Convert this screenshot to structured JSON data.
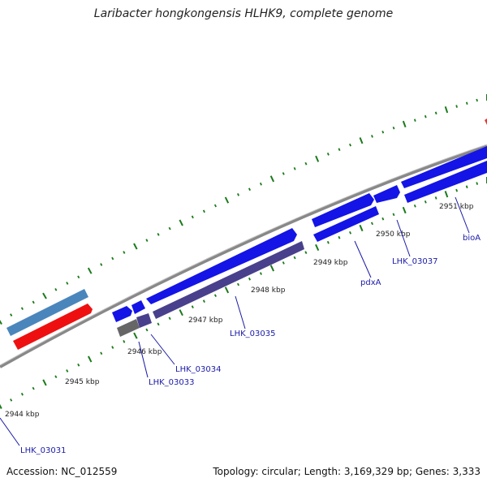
{
  "title": "Laribacter hongkongensis HLHK9, complete genome",
  "footer": {
    "accession": "Accession: NC_012559",
    "summary": "Topology: circular; Length: 3,169,329 bp; Genes: 3,333"
  },
  "colors": {
    "backbone": "#888888",
    "tick": "#1a7a1a",
    "gene_label": "#1a1aa8",
    "feature_blue": "#1414e6",
    "feature_purple": "#48408c",
    "feature_steel": "#4a86bc",
    "feature_red": "#ee1010",
    "feature_gray": "#666666"
  },
  "scale_labels": [
    "2944 kbp",
    "2945 kbp",
    "2946 kbp",
    "2947 kbp",
    "2948 kbp",
    "2949 kbp",
    "2950 kbp",
    "2951 kbp"
  ],
  "gene_labels": [
    "LHK_03031",
    "LHK_03033",
    "LHK_03034",
    "LHK_03035",
    "pdxA",
    "LHK_03037",
    "bioA"
  ]
}
